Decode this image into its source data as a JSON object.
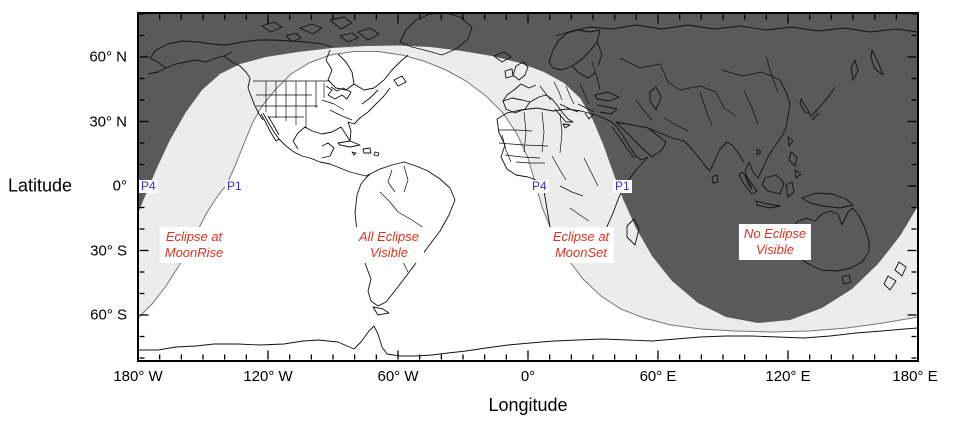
{
  "axes": {
    "y": {
      "title": "Latitude",
      "tick_labels": [
        "60° N",
        "30° N",
        "0°",
        "30° S",
        "60° S"
      ]
    },
    "x": {
      "title": "Longitude",
      "tick_labels": [
        "180° W",
        "120° W",
        "60° W",
        "0°",
        "60° E",
        "120° E",
        "180° E"
      ]
    }
  },
  "zones": {
    "moonrise": {
      "line1": "Eclipse at",
      "line2": "MoonRise"
    },
    "all_visible": {
      "line1": "All Eclipse",
      "line2": "Visible"
    },
    "moonset": {
      "line1": "Eclipse at",
      "line2": "MoonSet"
    },
    "none": {
      "line1": "No Eclipse",
      "line2": "Visible"
    }
  },
  "contact_markers": {
    "moonrise_p4": "P4",
    "moonrise_p1": "P1",
    "moonset_p4": "P4",
    "moonset_p1": "P1"
  },
  "colors": {
    "no_eclipse_fill": "#5a5a5a",
    "partial_fill": "#ececec",
    "all_visible_fill": "#ffffff",
    "zone_label_text": "#dd3322",
    "contact_label_text": "#3333cc",
    "coastline": "#111111"
  }
}
